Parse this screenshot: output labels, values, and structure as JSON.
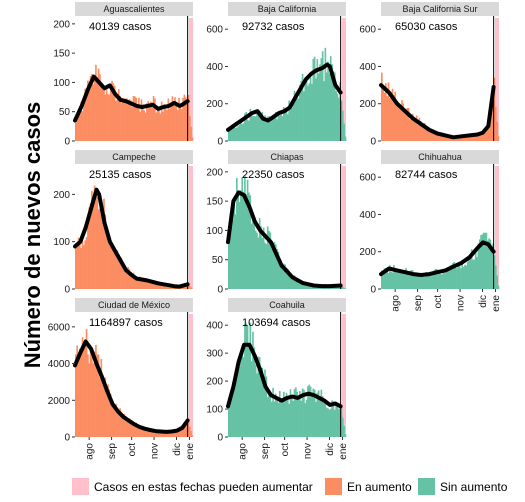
{
  "chart_data": {
    "type": "bar",
    "ylabel": "Número de nuevos casos",
    "xlabel": "",
    "x_ticks": [
      "ago",
      "sep",
      "oct",
      "nov",
      "dic",
      "ene"
    ],
    "colors": {
      "en_aumento": "#fc8d62",
      "sin_aumento": "#66c2a5",
      "shade": "#ffc0cb",
      "trend": "#000000"
    },
    "legend": {
      "position": "bottom",
      "items": [
        {
          "label": "Casos en estas fechas pueden aumentar",
          "color": "#ffc0cb"
        },
        {
          "label": "En aumento",
          "color": "#fc8d62"
        },
        {
          "label": "Sin aumento",
          "color": "#66c2a5"
        }
      ]
    },
    "panels": [
      {
        "name": "Aguascalientes",
        "total": "40139 casos",
        "status": "en_aumento",
        "ylim": [
          0,
          210
        ],
        "yticks": [
          0,
          50,
          100,
          150,
          200
        ],
        "show_x_ticks": false,
        "trend": [
          [
            0,
            35
          ],
          [
            5,
            60
          ],
          [
            10,
            90
          ],
          [
            14,
            110
          ],
          [
            18,
            100
          ],
          [
            22,
            90
          ],
          [
            26,
            95
          ],
          [
            30,
            80
          ],
          [
            34,
            70
          ],
          [
            38,
            68
          ],
          [
            42,
            64
          ],
          [
            46,
            60
          ],
          [
            50,
            58
          ],
          [
            54,
            60
          ],
          [
            58,
            62
          ],
          [
            62,
            55
          ],
          [
            66,
            58
          ],
          [
            70,
            60
          ],
          [
            74,
            65
          ],
          [
            78,
            60
          ],
          [
            80,
            62
          ],
          [
            84,
            68
          ]
        ]
      },
      {
        "name": "Baja California",
        "total": "92732 casos",
        "status": "sin_aumento",
        "ylim": [
          0,
          660
        ],
        "yticks": [
          0,
          200,
          400,
          600
        ],
        "show_x_ticks": false,
        "trend": [
          [
            0,
            60
          ],
          [
            6,
            90
          ],
          [
            12,
            120
          ],
          [
            18,
            150
          ],
          [
            22,
            160
          ],
          [
            26,
            120
          ],
          [
            30,
            110
          ],
          [
            34,
            130
          ],
          [
            38,
            150
          ],
          [
            42,
            160
          ],
          [
            46,
            180
          ],
          [
            50,
            230
          ],
          [
            54,
            280
          ],
          [
            58,
            330
          ],
          [
            62,
            360
          ],
          [
            66,
            380
          ],
          [
            70,
            390
          ],
          [
            74,
            410
          ],
          [
            76,
            400
          ],
          [
            80,
            300
          ],
          [
            84,
            260
          ]
        ]
      },
      {
        "name": "Baja California Sur",
        "total": "65030 casos",
        "status": "en_aumento",
        "ylim": [
          0,
          660
        ],
        "yticks": [
          0,
          200,
          400,
          600
        ],
        "show_x_ticks": false,
        "trend": [
          [
            0,
            300
          ],
          [
            6,
            260
          ],
          [
            12,
            200
          ],
          [
            18,
            160
          ],
          [
            24,
            120
          ],
          [
            30,
            90
          ],
          [
            36,
            60
          ],
          [
            42,
            40
          ],
          [
            48,
            30
          ],
          [
            54,
            20
          ],
          [
            60,
            25
          ],
          [
            66,
            30
          ],
          [
            72,
            35
          ],
          [
            76,
            45
          ],
          [
            80,
            80
          ],
          [
            84,
            290
          ]
        ]
      },
      {
        "name": "Campeche",
        "total": "25135 casos",
        "status": "en_aumento",
        "ylim": [
          0,
          260
        ],
        "yticks": [
          0,
          100,
          200
        ],
        "show_x_ticks": false,
        "trend": [
          [
            0,
            90
          ],
          [
            4,
            100
          ],
          [
            8,
            130
          ],
          [
            12,
            170
          ],
          [
            16,
            210
          ],
          [
            18,
            200
          ],
          [
            22,
            140
          ],
          [
            26,
            100
          ],
          [
            30,
            80
          ],
          [
            34,
            60
          ],
          [
            38,
            40
          ],
          [
            42,
            30
          ],
          [
            46,
            22
          ],
          [
            50,
            20
          ],
          [
            54,
            18
          ],
          [
            58,
            15
          ],
          [
            62,
            12
          ],
          [
            66,
            10
          ],
          [
            70,
            8
          ],
          [
            74,
            6
          ],
          [
            78,
            5
          ],
          [
            84,
            10
          ]
        ]
      },
      {
        "name": "Chiapas",
        "total": "22350 casos",
        "status": "sin_aumento",
        "ylim": [
          0,
          210
        ],
        "yticks": [
          0,
          50,
          100,
          150,
          200
        ],
        "show_x_ticks": false,
        "trend": [
          [
            0,
            80
          ],
          [
            4,
            150
          ],
          [
            8,
            165
          ],
          [
            12,
            160
          ],
          [
            16,
            140
          ],
          [
            20,
            115
          ],
          [
            24,
            100
          ],
          [
            28,
            90
          ],
          [
            32,
            80
          ],
          [
            36,
            60
          ],
          [
            40,
            40
          ],
          [
            44,
            30
          ],
          [
            48,
            20
          ],
          [
            52,
            15
          ],
          [
            56,
            10
          ],
          [
            60,
            8
          ],
          [
            64,
            6
          ],
          [
            70,
            5
          ],
          [
            76,
            5
          ],
          [
            84,
            6
          ]
        ]
      },
      {
        "name": "Chihuahua",
        "total": "82744 casos",
        "status": "sin_aumento",
        "ylim": [
          0,
          660
        ],
        "yticks": [
          0,
          200,
          400,
          600
        ],
        "show_x_ticks": true,
        "trend": [
          [
            0,
            80
          ],
          [
            6,
            110
          ],
          [
            12,
            100
          ],
          [
            18,
            90
          ],
          [
            24,
            80
          ],
          [
            30,
            75
          ],
          [
            36,
            80
          ],
          [
            42,
            90
          ],
          [
            48,
            100
          ],
          [
            54,
            120
          ],
          [
            60,
            140
          ],
          [
            66,
            170
          ],
          [
            72,
            220
          ],
          [
            76,
            250
          ],
          [
            80,
            240
          ],
          [
            84,
            200
          ]
        ]
      },
      {
        "name": "Ciudad de México",
        "total": "1164897 casos",
        "status": "en_aumento",
        "ylim": [
          0,
          6700
        ],
        "yticks": [
          0,
          2000,
          4000,
          6000
        ],
        "show_x_ticks": true,
        "trend": [
          [
            0,
            3900
          ],
          [
            4,
            4600
          ],
          [
            8,
            5200
          ],
          [
            12,
            4800
          ],
          [
            16,
            4000
          ],
          [
            20,
            3300
          ],
          [
            24,
            2500
          ],
          [
            28,
            1800
          ],
          [
            32,
            1400
          ],
          [
            36,
            1100
          ],
          [
            40,
            900
          ],
          [
            44,
            700
          ],
          [
            48,
            550
          ],
          [
            52,
            450
          ],
          [
            56,
            380
          ],
          [
            60,
            320
          ],
          [
            64,
            300
          ],
          [
            68,
            280
          ],
          [
            72,
            300
          ],
          [
            76,
            350
          ],
          [
            80,
            500
          ],
          [
            84,
            900
          ]
        ]
      },
      {
        "name": "Coahuila",
        "total": "103694 casos",
        "status": "sin_aumento",
        "ylim": [
          0,
          440
        ],
        "yticks": [
          0,
          100,
          200,
          300,
          400
        ],
        "show_x_ticks": true,
        "trend": [
          [
            0,
            110
          ],
          [
            4,
            180
          ],
          [
            8,
            270
          ],
          [
            12,
            330
          ],
          [
            16,
            330
          ],
          [
            20,
            290
          ],
          [
            24,
            240
          ],
          [
            28,
            180
          ],
          [
            32,
            150
          ],
          [
            36,
            140
          ],
          [
            40,
            130
          ],
          [
            44,
            140
          ],
          [
            48,
            145
          ],
          [
            52,
            140
          ],
          [
            56,
            150
          ],
          [
            60,
            155
          ],
          [
            64,
            150
          ],
          [
            68,
            140
          ],
          [
            72,
            130
          ],
          [
            76,
            115
          ],
          [
            80,
            120
          ],
          [
            84,
            110
          ]
        ]
      }
    ]
  }
}
